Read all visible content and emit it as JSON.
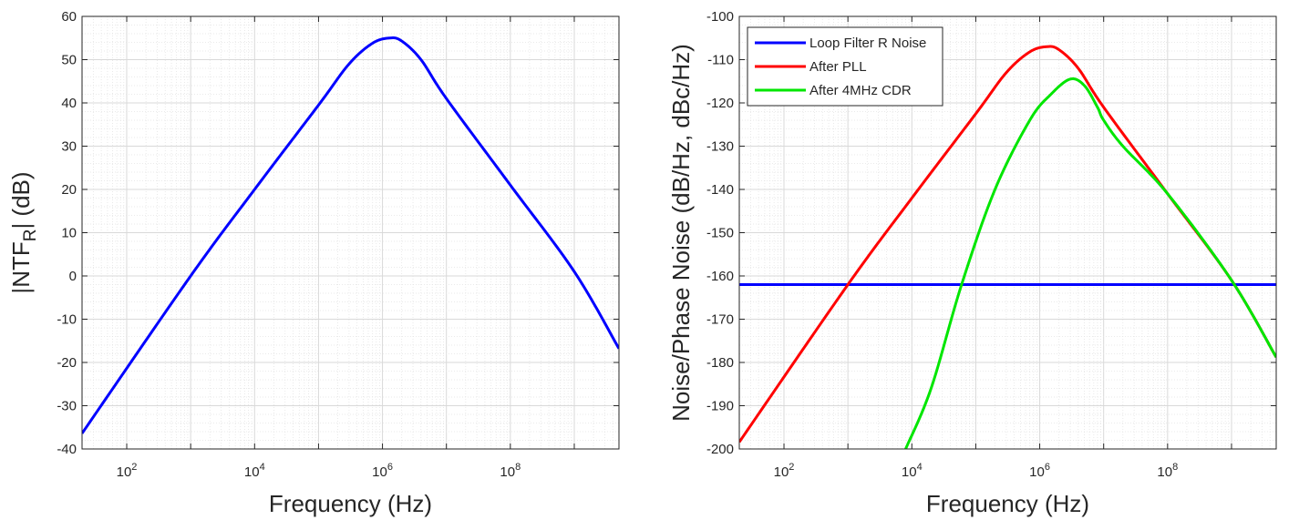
{
  "chart_data": [
    {
      "type": "line",
      "xscale": "log",
      "xlabel": "Frequency (Hz)",
      "ylabel_main": "|NTF",
      "ylabel_sub": "R",
      "ylabel_tail": "| (dB)",
      "xlim": [
        20,
        5000000000
      ],
      "ylim": [
        -40,
        60
      ],
      "xticks": [
        {
          "value": 100,
          "base": "10",
          "exp": "2"
        },
        {
          "value": 10000,
          "base": "10",
          "exp": "4"
        },
        {
          "value": 1000000,
          "base": "10",
          "exp": "6"
        },
        {
          "value": 100000000,
          "base": "10",
          "exp": "8"
        }
      ],
      "yticks": [
        -40,
        -30,
        -20,
        -10,
        0,
        10,
        20,
        30,
        40,
        50,
        60
      ],
      "grid": "on",
      "series": [
        {
          "color": "#0000ff",
          "points": [
            [
              20,
              -36.4
            ],
            [
              1000,
              0
            ],
            [
              10000,
              20
            ],
            [
              100000,
              39.5
            ],
            [
              300000,
              49
            ],
            [
              700000,
              53.8
            ],
            [
              1300000,
              55
            ],
            [
              2000000,
              54.3
            ],
            [
              4000000,
              50
            ],
            [
              10000000,
              41
            ],
            [
              100000000,
              21
            ],
            [
              1000000000,
              1
            ],
            [
              5000000000,
              -16.8
            ]
          ]
        }
      ]
    },
    {
      "type": "line",
      "xscale": "log",
      "xlabel": "Frequency (Hz)",
      "ylabel": "Noise/Phase Noise (dB/Hz, dBc/Hz)",
      "xlim": [
        20,
        5000000000
      ],
      "ylim": [
        -200,
        -100
      ],
      "xticks": [
        {
          "value": 100,
          "base": "10",
          "exp": "2"
        },
        {
          "value": 10000,
          "base": "10",
          "exp": "4"
        },
        {
          "value": 1000000,
          "base": "10",
          "exp": "6"
        },
        {
          "value": 100000000,
          "base": "10",
          "exp": "8"
        }
      ],
      "yticks": [
        -200,
        -190,
        -180,
        -170,
        -160,
        -150,
        -140,
        -130,
        -120,
        -110,
        -100
      ],
      "grid": "on",
      "legend": "top-left",
      "series": [
        {
          "name": "Loop Filter R Noise",
          "color": "#0000ff",
          "points": [
            [
              20,
              -162
            ],
            [
              5000000000,
              -162
            ]
          ]
        },
        {
          "name": "After PLL",
          "color": "#ff0000",
          "points": [
            [
              20,
              -198.4
            ],
            [
              1000,
              -162
            ],
            [
              10000,
              -142
            ],
            [
              100000,
              -122.5
            ],
            [
              300000,
              -113
            ],
            [
              700000,
              -108.2
            ],
            [
              1300000,
              -107
            ],
            [
              2000000,
              -107.7
            ],
            [
              4000000,
              -112
            ],
            [
              10000000,
              -121
            ],
            [
              100000000,
              -141
            ],
            [
              1000000000,
              -161
            ],
            [
              5000000000,
              -178.8
            ]
          ]
        },
        {
          "name": "After 4MHz CDR",
          "color": "#00e600",
          "points": [
            [
              8000,
              -200
            ],
            [
              20000,
              -186
            ],
            [
              60000,
              -162
            ],
            [
              200000,
              -140
            ],
            [
              700000,
              -124
            ],
            [
              1500000,
              -118
            ],
            [
              3000000,
              -114.5
            ],
            [
              5000000,
              -116
            ],
            [
              8000000,
              -121
            ],
            [
              10000000,
              -124
            ],
            [
              20000000,
              -130
            ],
            [
              100000000,
              -141
            ],
            [
              1000000000,
              -161
            ],
            [
              5000000000,
              -178.8
            ]
          ]
        }
      ]
    }
  ]
}
